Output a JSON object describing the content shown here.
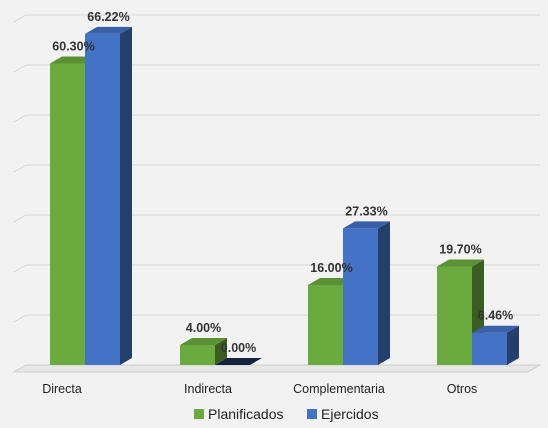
{
  "chart_data": {
    "type": "bar",
    "categories": [
      "Directa",
      "Indirecta",
      "Complementaria",
      "Otros"
    ],
    "series": [
      {
        "name": "Planificados",
        "values": [
          60.3,
          4.0,
          16.0,
          19.7
        ],
        "labels": [
          "60.30%",
          "4.00%",
          "16.00%",
          "19.70%"
        ],
        "color": "#6aaa3e"
      },
      {
        "name": "Ejercidos",
        "values": [
          66.22,
          0.0,
          27.33,
          6.46
        ],
        "labels": [
          "66.22%",
          "0.00%",
          "27.33%",
          "6.46%"
        ],
        "color": "#4472c4"
      }
    ],
    "title": "",
    "xlabel": "",
    "ylabel": "",
    "ylim": [
      0,
      70
    ],
    "grid": true,
    "legend": "bottom",
    "three_d": true
  }
}
